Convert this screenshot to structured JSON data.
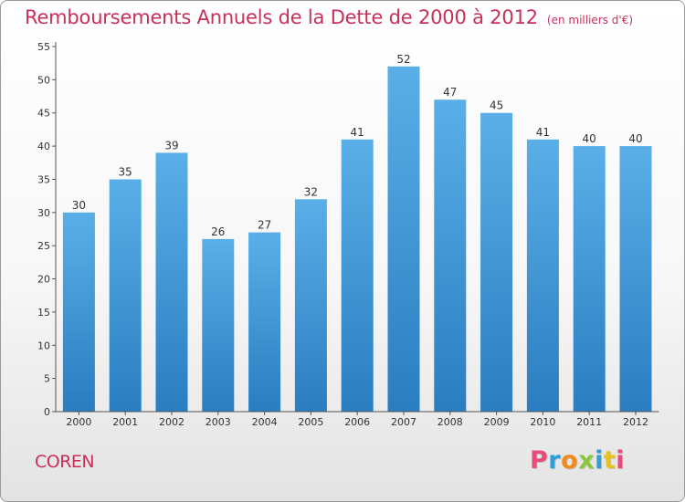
{
  "header": {
    "title": "Remboursements Annuels de la Dette de 2000 à 2012",
    "subtitle": "(en milliers d'€)"
  },
  "footer": {
    "commune": "COREN",
    "brand": "Proxiti",
    "brand_colors": [
      "#e84a7a",
      "#2a9fd8",
      "#f08a1c",
      "#8cc63f",
      "#2a9fd8",
      "#e8c21c",
      "#e84a7a"
    ]
  },
  "chart_data": {
    "type": "bar",
    "title": "Remboursements Annuels de la Dette de 2000 à 2012",
    "subtitle": "(en milliers d'€)",
    "xlabel": "",
    "ylabel": "",
    "categories": [
      "2000",
      "2001",
      "2002",
      "2003",
      "2004",
      "2005",
      "2006",
      "2007",
      "2008",
      "2009",
      "2010",
      "2011",
      "2012"
    ],
    "values": [
      30,
      35,
      39,
      26,
      27,
      32,
      41,
      52,
      47,
      45,
      41,
      40,
      40
    ],
    "ylim": [
      0,
      55
    ],
    "yticks": [
      0,
      5,
      10,
      15,
      20,
      25,
      30,
      35,
      40,
      45,
      50,
      55
    ],
    "grid": false,
    "data_labels": true,
    "colors": {
      "bar_top": "#5aafe8",
      "bar_bottom": "#2a7dc0",
      "axis": "#555555"
    }
  }
}
